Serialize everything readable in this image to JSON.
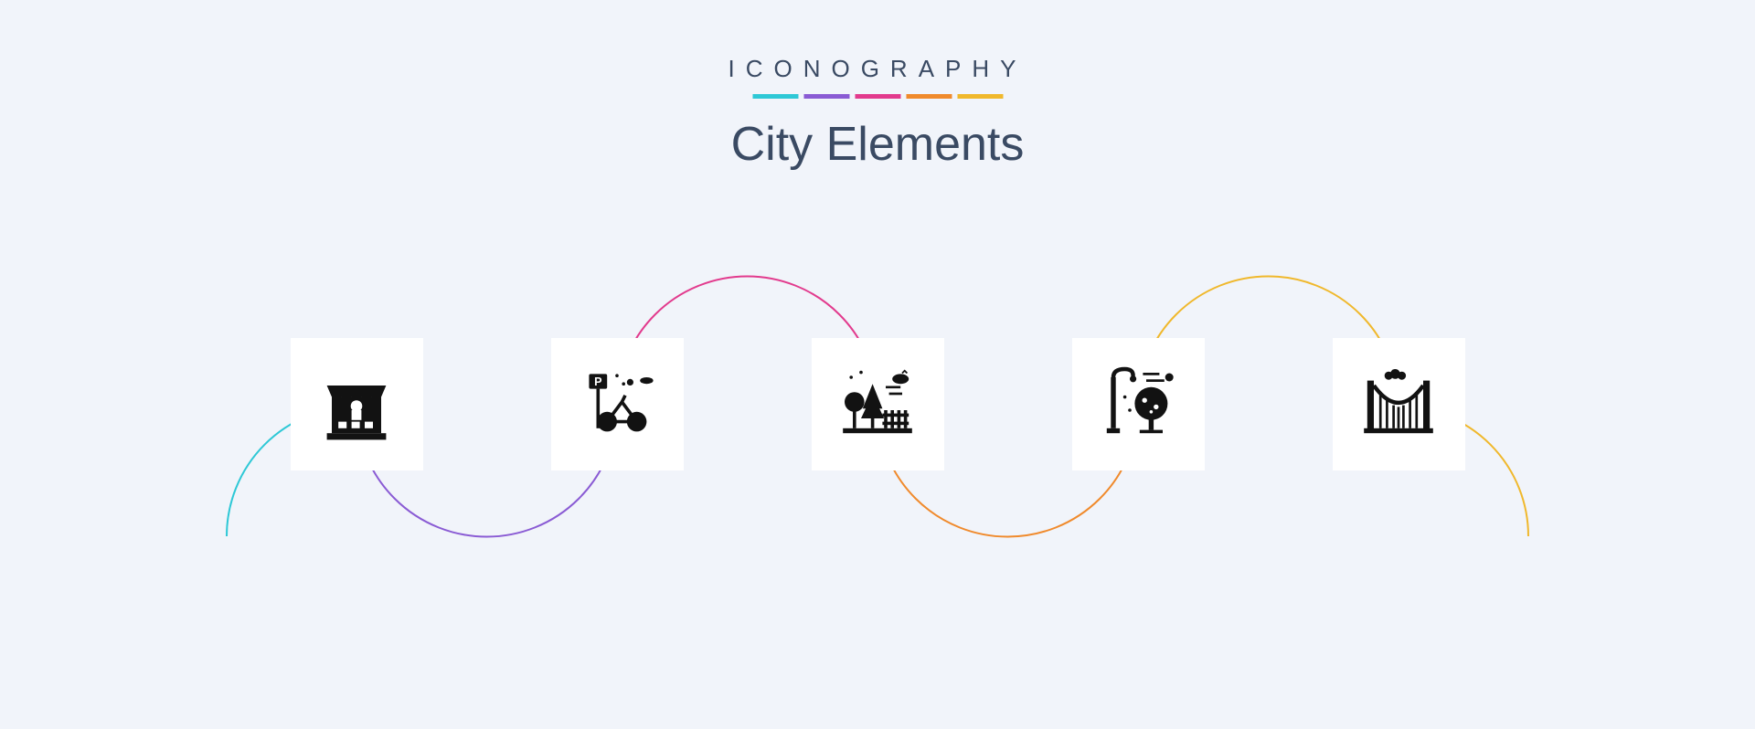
{
  "header": {
    "brand": "ICONOGRAPHY",
    "title": "City Elements",
    "stripe_colors": [
      "#2ec8d6",
      "#8a5bd4",
      "#e23a8d",
      "#f08a2c",
      "#f0b82c"
    ],
    "title_color": "#3a4a63",
    "brand_color": "#3a4a63"
  },
  "background_color": "#f1f4fa",
  "card_bg": "#ffffff",
  "glyph_color": "#121212",
  "wave": {
    "stroke_width": 2,
    "seg_colors": [
      "#2ec8d6",
      "#8a5bd4",
      "#e23a8d",
      "#f08a2c",
      "#f0b82c"
    ]
  },
  "icons": [
    {
      "name": "food-stall-icon"
    },
    {
      "name": "bike-parking-icon"
    },
    {
      "name": "park-garden-icon"
    },
    {
      "name": "street-light-tree-icon"
    },
    {
      "name": "bridge-icon"
    }
  ]
}
